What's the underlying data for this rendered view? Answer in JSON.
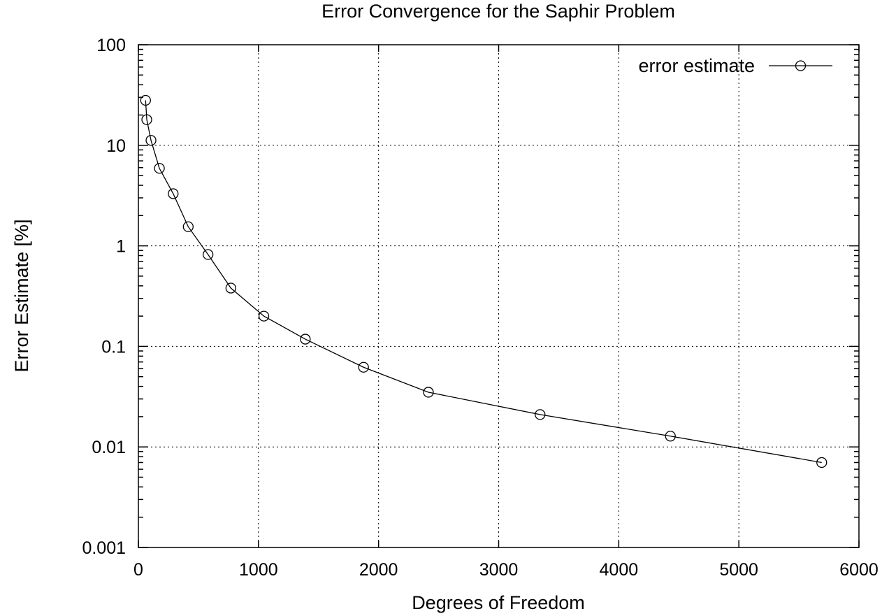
{
  "chart_data": {
    "type": "line",
    "title": "Error Convergence for the Saphir Problem",
    "xlabel": "Degrees of Freedom",
    "ylabel": "Error Estimate [%]",
    "xlim": [
      0,
      6000
    ],
    "ylim": [
      0.001,
      100
    ],
    "yscale": "log",
    "grid": true,
    "legend_position": "top-right",
    "x_ticks": [
      0,
      1000,
      2000,
      3000,
      4000,
      5000,
      6000
    ],
    "x_tick_labels": [
      "0",
      "1000",
      "2000",
      "3000",
      "4000",
      "5000",
      "6000"
    ],
    "y_ticks": [
      0.001,
      0.01,
      0.1,
      1,
      10,
      100
    ],
    "y_tick_labels": [
      "0.001",
      "0.01",
      "0.1",
      "1",
      "10",
      "100"
    ],
    "series": [
      {
        "name": "error estimate",
        "marker": "open-circle",
        "color": "#000000",
        "x": [
          60,
          70,
          105,
          175,
          290,
          415,
          580,
          770,
          1045,
          1390,
          1875,
          2415,
          3345,
          4430,
          5690
        ],
        "y": [
          28,
          18,
          11.2,
          5.9,
          3.3,
          1.55,
          0.82,
          0.38,
          0.2,
          0.118,
          0.062,
          0.035,
          0.021,
          0.0128,
          0.007
        ]
      }
    ]
  }
}
